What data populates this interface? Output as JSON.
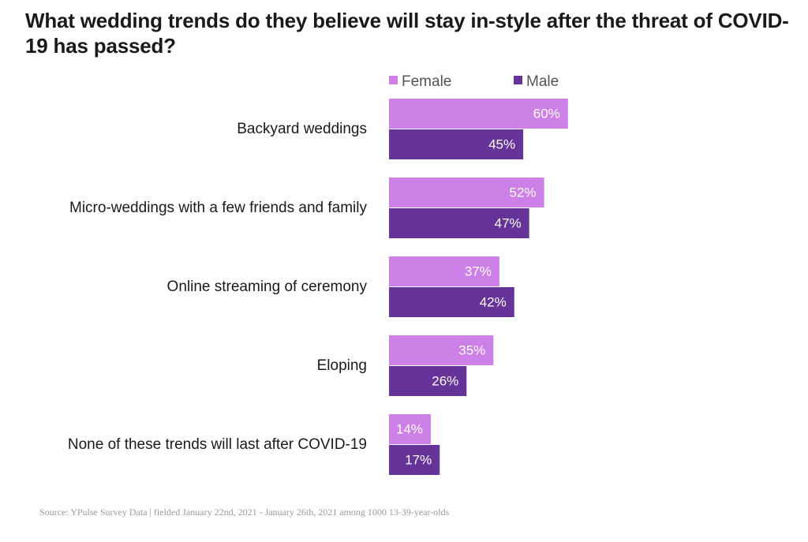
{
  "chart_data": {
    "type": "bar",
    "orientation": "horizontal",
    "title": "What wedding trends do they believe will stay in-style after the threat of COVID-19 has passed?",
    "categories": [
      "Backyard weddings",
      "Micro-weddings with a few friends and family",
      "Online streaming of ceremony",
      "Eloping",
      "None of these trends will last after COVID-19"
    ],
    "series": [
      {
        "name": "Female",
        "color": "#cc80e8",
        "values": [
          60,
          52,
          37,
          35,
          14
        ]
      },
      {
        "name": "Male",
        "color": "#663399",
        "values": [
          45,
          47,
          42,
          26,
          17
        ]
      }
    ],
    "value_suffix": "%",
    "xlim": [
      0,
      60
    ],
    "legend_position": "top",
    "grid": false,
    "xlabel": "",
    "ylabel": ""
  },
  "source": "Source: YPulse Survey Data | fielded January 22nd, 2021 - January 26th, 2021 among 1000 13-39-year-olds"
}
